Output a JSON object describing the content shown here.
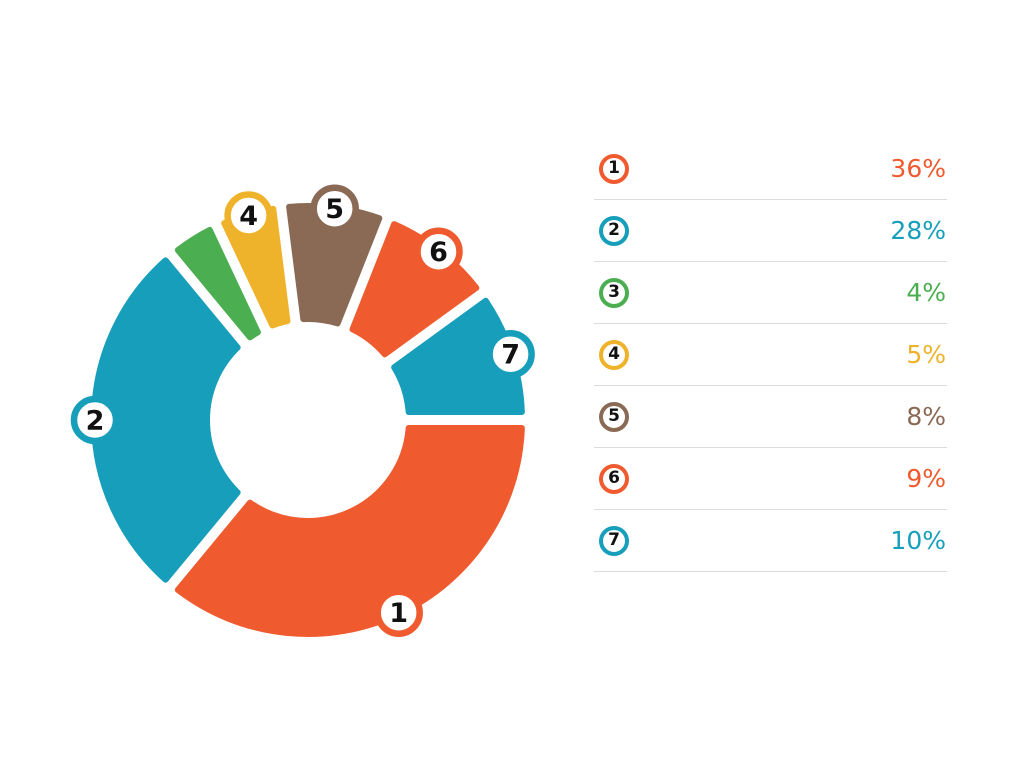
{
  "chart_data": {
    "type": "pie",
    "subtype": "donut",
    "title": "",
    "legend_position": "right",
    "direction": "clockwise",
    "start_angle_deg": 0,
    "unit": "%",
    "categories": [
      "1",
      "2",
      "3",
      "4",
      "5",
      "6",
      "7"
    ],
    "values": [
      36,
      28,
      4,
      5,
      8,
      9,
      10
    ],
    "segments": [
      {
        "label": "1",
        "value": 36,
        "display": "36%",
        "color": "#EF5B2F",
        "badge_on_chart": true
      },
      {
        "label": "2",
        "value": 28,
        "display": "28%",
        "color": "#169EBB",
        "badge_on_chart": true
      },
      {
        "label": "3",
        "value": 4,
        "display": "4%",
        "color": "#4BAE50",
        "badge_on_chart": false
      },
      {
        "label": "4",
        "value": 5,
        "display": "5%",
        "color": "#EFB32B",
        "badge_on_chart": true
      },
      {
        "label": "5",
        "value": 8,
        "display": "8%",
        "color": "#8A6A55",
        "badge_on_chart": true
      },
      {
        "label": "6",
        "value": 9,
        "display": "9%",
        "color": "#EF5B2F",
        "badge_on_chart": true
      },
      {
        "label": "7",
        "value": 10,
        "display": "10%",
        "color": "#169EBB",
        "badge_on_chart": true
      }
    ]
  },
  "legend": {
    "rows": [
      {
        "label": "1",
        "value": "36%",
        "color": "#EF5B2F"
      },
      {
        "label": "2",
        "value": "28%",
        "color": "#169EBB"
      },
      {
        "label": "3",
        "value": "4%",
        "color": "#4BAE50"
      },
      {
        "label": "4",
        "value": "5%",
        "color": "#EFB32B"
      },
      {
        "label": "5",
        "value": "8%",
        "color": "#8A6A55"
      },
      {
        "label": "6",
        "value": "9%",
        "color": "#EF5B2F"
      },
      {
        "label": "7",
        "value": "10%",
        "color": "#169EBB"
      }
    ]
  },
  "styles": {
    "background": "#ffffff",
    "divider_color": "#dcdcdc",
    "number_color": "#111111",
    "badge_fill": "#ffffff"
  }
}
